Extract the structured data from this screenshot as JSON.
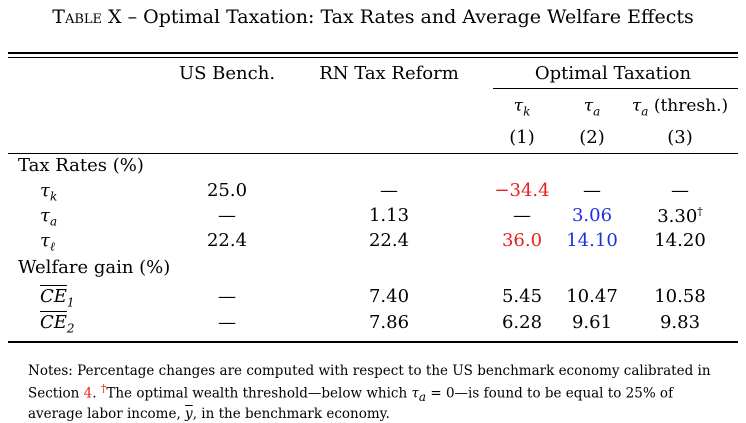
{
  "title": {
    "prefix": "Table X",
    "text": "Optimal Taxation: Tax Rates and Average Welfare Effects"
  },
  "columns": {
    "us_bench": "US Bench.",
    "rn_reform": "RN Tax Reform",
    "optimal": "Optimal Taxation",
    "sub": [
      "τ",
      "τ",
      "τ"
    ],
    "sub_idx": [
      "k",
      "a",
      "a"
    ],
    "sub3_suffix": "(thresh.)",
    "numbers": [
      "(1)",
      "(2)",
      "(3)"
    ]
  },
  "sections": {
    "tax_rates": "Tax Rates (%)",
    "welfare": "Welfare gain (%)"
  },
  "rows": [
    {
      "label": "τ",
      "sub": "k",
      "us": "25.0",
      "rn": "—",
      "c1": "−34.4",
      "c2": "—",
      "c3": "—"
    },
    {
      "label": "τ",
      "sub": "a",
      "us": "—",
      "rn": "1.13",
      "c1": "—",
      "c2": "3.06",
      "c3": "3.30",
      "c3_sup": "†"
    },
    {
      "label": "τ",
      "sub": "ℓ",
      "us": "22.4",
      "rn": "22.4",
      "c1": "36.0",
      "c2": "14.10",
      "c3": "14.20"
    },
    {
      "label": "CE",
      "sub": "1",
      "us": "—",
      "rn": "7.40",
      "c1": "5.45",
      "c2": "10.47",
      "c3": "10.58"
    },
    {
      "label": "CE",
      "sub": "2",
      "us": "—",
      "rn": "7.86",
      "c1": "6.28",
      "c2": "9.61",
      "c3": "9.83"
    }
  ],
  "colors": {
    "red": "#e8201f",
    "blue": "#1f2fe0"
  },
  "notes": {
    "p1": "Notes: Percentage changes are computed with respect to the US benchmark economy calibrated in Section",
    "section_ref": "4",
    "dagger": "†",
    "p2": "The optimal wealth threshold—below which ",
    "tau": "τ",
    "tau_sub": "a",
    "p3": " = 0—is found to be equal to 25% of average labor income, ",
    "ybar": "y",
    "p4": ", in the benchmark economy."
  }
}
